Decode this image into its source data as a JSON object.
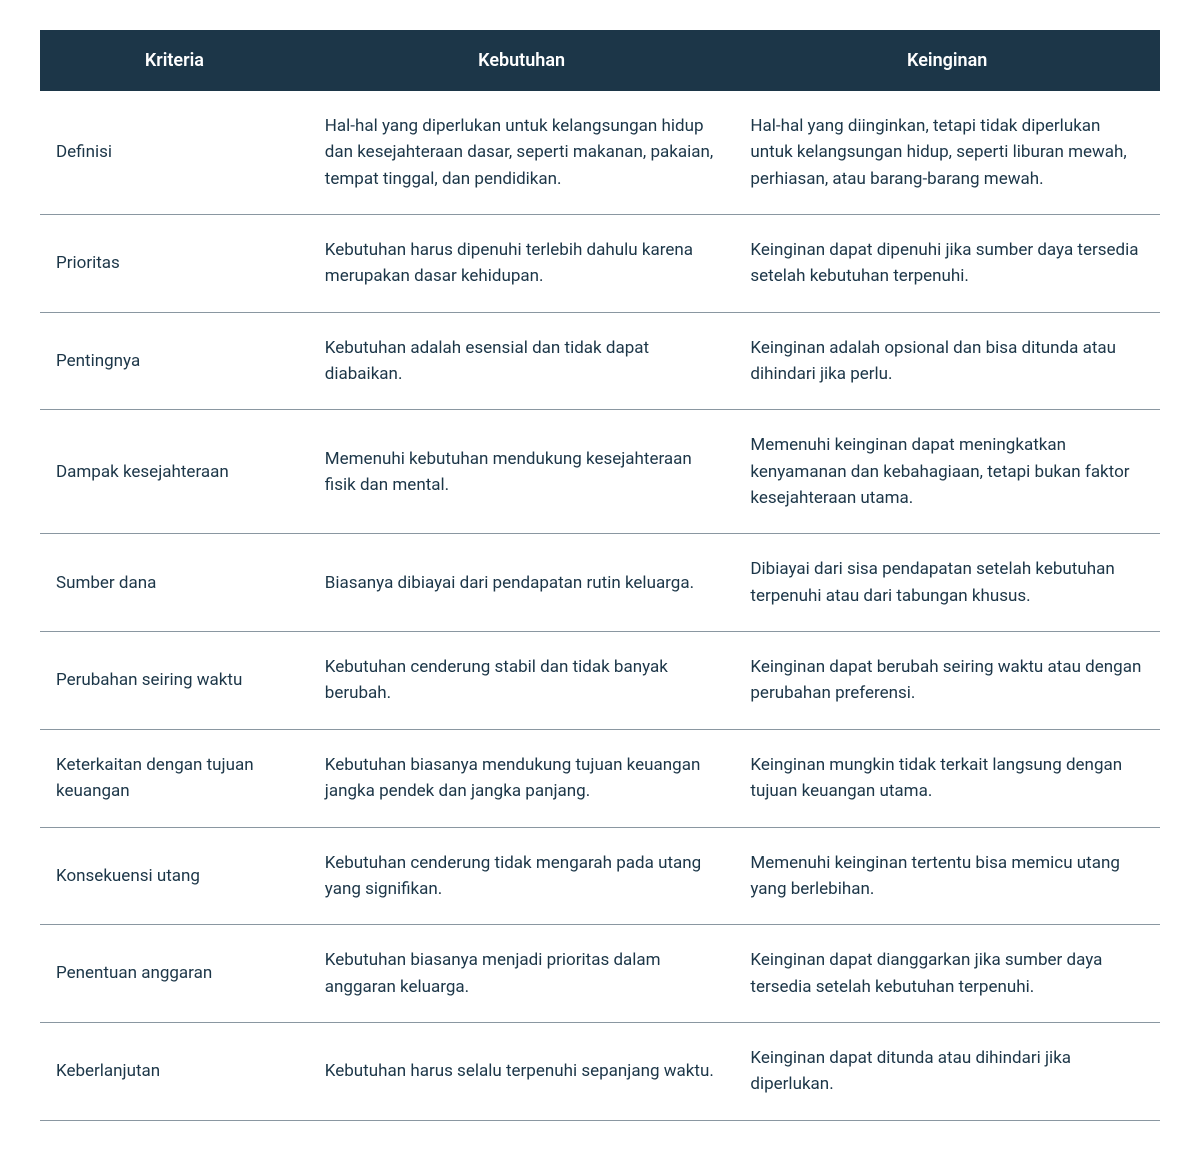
{
  "table": {
    "type": "table",
    "header_bg": "#1c3648",
    "header_color": "#ffffff",
    "body_text_color": "#1c3648",
    "border_color": "#8a97a1",
    "background_color": "#ffffff",
    "columns": [
      {
        "label": "Kriteria",
        "width_pct": 24,
        "align": "center"
      },
      {
        "label": "Kebutuhan",
        "width_pct": 38,
        "align": "center"
      },
      {
        "label": "Keinginan",
        "width_pct": 38,
        "align": "center"
      }
    ],
    "rows": [
      {
        "kriteria": "Definisi",
        "kebutuhan": "Hal-hal yang diperlukan untuk kelangsungan hidup dan kesejahteraan dasar, seperti makanan, pakaian, tempat tinggal, dan pendidikan.",
        "keinginan": " Hal-hal yang diinginkan, tetapi tidak diperlukan untuk kelangsungan hidup, seperti liburan mewah, perhiasan, atau barang-barang mewah."
      },
      {
        "kriteria": "Prioritas",
        "kebutuhan": "Kebutuhan harus dipenuhi terlebih dahulu karena merupakan dasar kehidupan.",
        "keinginan": " Keinginan dapat dipenuhi jika sumber daya tersedia setelah kebutuhan terpenuhi."
      },
      {
        "kriteria": "Pentingnya",
        "kebutuhan": "Kebutuhan adalah esensial dan tidak dapat diabaikan.",
        "keinginan": " Keinginan adalah opsional dan bisa ditunda atau dihindari jika perlu."
      },
      {
        "kriteria": "Dampak kesejahteraan",
        "kebutuhan": "Memenuhi kebutuhan mendukung kesejahteraan fisik dan mental.",
        "keinginan": " Memenuhi keinginan dapat meningkatkan kenyamanan dan kebahagiaan, tetapi bukan faktor kesejahteraan utama."
      },
      {
        "kriteria": "Sumber dana",
        "kebutuhan": "Biasanya dibiayai dari pendapatan rutin keluarga.",
        "keinginan": " Dibiayai dari sisa pendapatan setelah kebutuhan terpenuhi atau dari tabungan khusus."
      },
      {
        "kriteria": "Perubahan seiring waktu",
        "kebutuhan": "Kebutuhan cenderung stabil dan tidak banyak berubah.",
        "keinginan": " Keinginan dapat berubah seiring waktu atau dengan perubahan preferensi."
      },
      {
        "kriteria": "Keterkaitan dengan tujuan keuangan",
        "kebutuhan": "Kebutuhan biasanya mendukung tujuan keuangan jangka pendek dan jangka panjang.",
        "keinginan": " Keinginan mungkin tidak terkait langsung dengan tujuan keuangan utama."
      },
      {
        "kriteria": "Konsekuensi utang",
        "kebutuhan": "Kebutuhan cenderung tidak mengarah pada utang yang signifikan.",
        "keinginan": " Memenuhi keinginan tertentu bisa memicu utang yang berlebihan."
      },
      {
        "kriteria": "Penentuan anggaran",
        "kebutuhan": "Kebutuhan biasanya menjadi prioritas dalam anggaran keluarga.",
        "keinginan": " Keinginan dapat dianggarkan jika sumber daya tersedia setelah kebutuhan terpenuhi."
      },
      {
        "kriteria": "Keberlanjutan",
        "kebutuhan": "Kebutuhan harus selalu terpenuhi sepanjang waktu.",
        "keinginan": " Keinginan dapat ditunda atau dihindari jika diperlukan."
      }
    ]
  }
}
